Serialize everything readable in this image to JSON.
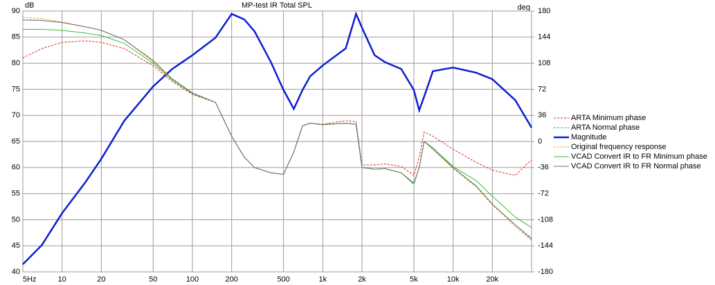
{
  "chart_data": {
    "type": "line",
    "title": "MP-test IR Total SPL",
    "y_label": "dB",
    "y2_label": "deg",
    "log_x": true,
    "grid": true,
    "x": [
      5,
      7,
      10,
      15,
      20,
      30,
      50,
      70,
      100,
      150,
      200,
      250,
      300,
      400,
      500,
      600,
      700,
      800,
      1000,
      1500,
      1800,
      2000,
      2500,
      3000,
      4000,
      5000,
      5500,
      6000,
      7000,
      10000,
      15000,
      20000,
      30000,
      40000
    ],
    "xlim": [
      5,
      40000
    ],
    "xticks": [
      {
        "value": 5,
        "label": "5Hz"
      },
      10,
      20,
      50,
      100,
      200,
      500,
      {
        "value": 1000,
        "label": "1k"
      },
      {
        "value": 2000,
        "label": "2k"
      },
      {
        "value": 5000,
        "label": "5k"
      },
      {
        "value": 10000,
        "label": "10k"
      },
      {
        "value": 20000,
        "label": "20k"
      }
    ],
    "ylim": [
      40,
      90
    ],
    "yticks": [
      40,
      45,
      50,
      55,
      60,
      65,
      70,
      75,
      80,
      85,
      90
    ],
    "y2lim": [
      -180,
      180
    ],
    "y2ticks": [
      -180,
      -144,
      -108,
      -72,
      -36,
      0,
      36,
      72,
      108,
      144,
      180
    ],
    "series": [
      {
        "name": "ARTA Minimum phase",
        "color": "#e02020",
        "dashed": true,
        "values": [
          81,
          82.8,
          84,
          84.3,
          84,
          82.8,
          79.5,
          76.5,
          74,
          72.5,
          66,
          62,
          60,
          59,
          58.7,
          63,
          68,
          68.5,
          68.3,
          69,
          68.8,
          60.5,
          60.5,
          60.7,
          60.2,
          58.5,
          62,
          66.8,
          66,
          63.5,
          61,
          59.5,
          58.5,
          61.5
        ]
      },
      {
        "name": "ARTA Normal phase",
        "color": "#3a8fc0",
        "dashed": true,
        "values": [
          88.3,
          88.2,
          87.8,
          87,
          86.3,
          84.5,
          80.5,
          77,
          74.3,
          72.5,
          66,
          62,
          60,
          59,
          58.7,
          63,
          68,
          68.5,
          68.2,
          68.5,
          68.3,
          60,
          59.7,
          59.8,
          59,
          57,
          60,
          65,
          63.5,
          60,
          56.5,
          53,
          49,
          46.5
        ]
      },
      {
        "name": "Magnitude",
        "color": "#0a1ed0",
        "width": 2.5,
        "axis": "y2",
        "values": [
          -169.5,
          -143,
          -99,
          -57,
          -24,
          28.5,
          76,
          100,
          119,
          143,
          176,
          168.5,
          152,
          109.5,
          71,
          45,
          71,
          90,
          105,
          128.5,
          176,
          157,
          119,
          109.5,
          100,
          71,
          43,
          62,
          97,
          102,
          95,
          86,
          57,
          19
        ]
      },
      {
        "name": "Original frequency response",
        "color": "#e0a020",
        "dashed": true,
        "values": [
          88.8,
          88.5,
          87.9,
          87,
          86.3,
          84.5,
          80.3,
          76.8,
          74.2,
          72.5,
          66,
          62,
          60,
          59,
          58.7,
          63,
          68,
          68.5,
          68.2,
          68.5,
          68.3,
          60,
          59.7,
          59.8,
          59,
          57,
          60,
          65,
          63.5,
          59.8,
          56.3,
          52.8,
          48.7,
          46
        ]
      },
      {
        "name": "VCAD Convert IR to FR Minimum phase",
        "color": "#30c030",
        "values": [
          86.5,
          86.5,
          86.3,
          85.8,
          85.3,
          83.8,
          80,
          76.8,
          74.2,
          72.5,
          66,
          62,
          60,
          59,
          58.7,
          63,
          68,
          68.5,
          68.2,
          68.5,
          68.3,
          60,
          59.7,
          59.8,
          59,
          56.8,
          60,
          65,
          63.8,
          60.2,
          57.5,
          54.5,
          50.5,
          48.5
        ]
      },
      {
        "name": "VCAD Convert IR to FR Normal phase",
        "color": "#707070",
        "values": [
          88.3,
          88.2,
          87.8,
          87,
          86.3,
          84.5,
          80.5,
          77,
          74.3,
          72.5,
          66,
          62,
          60,
          59,
          58.7,
          63,
          68,
          68.5,
          68.2,
          68.5,
          68.3,
          60,
          59.7,
          59.8,
          59,
          57,
          60,
          65,
          63.5,
          60,
          56.5,
          53,
          49,
          46.3
        ]
      }
    ]
  }
}
